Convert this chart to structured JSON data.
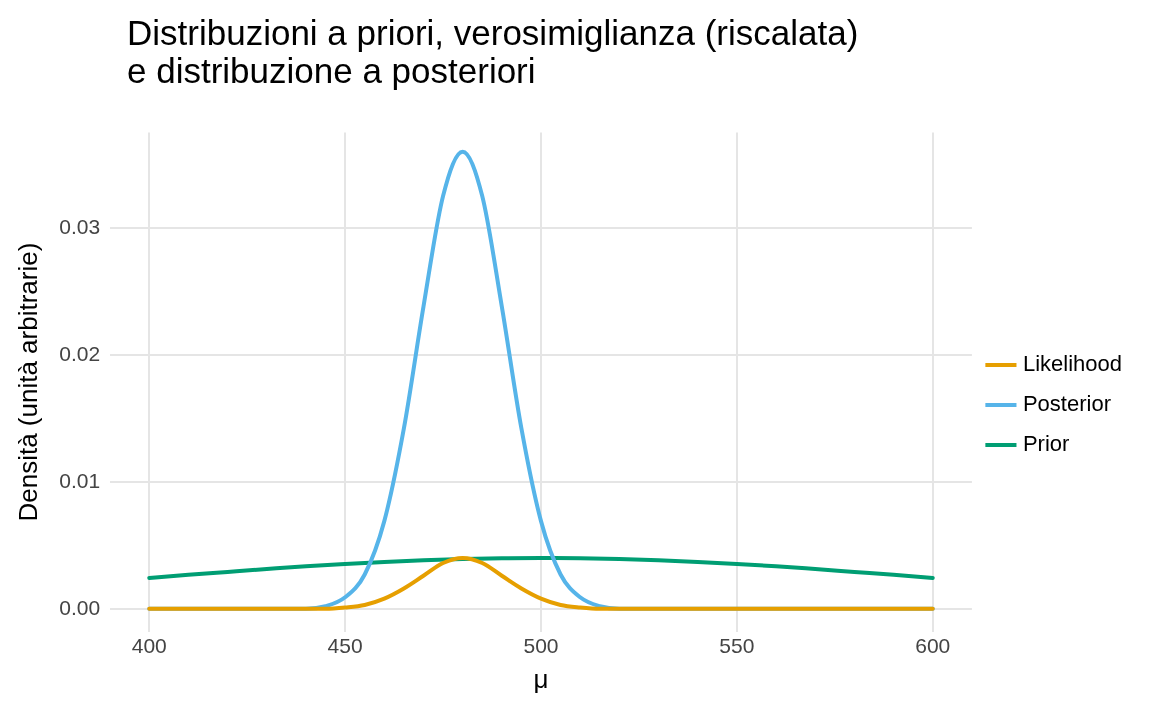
{
  "chart_data": {
    "type": "line",
    "title": "Distribuzioni a priori, verosimiglianza (riscalata)\ne distribuzione a posteriori",
    "xlabel": "μ",
    "ylabel": "Densità (unità arbitrarie)",
    "xlim": [
      390,
      610
    ],
    "xticks": [
      400,
      450,
      500,
      550,
      600
    ],
    "ylim": [
      -0.0018,
      0.0375
    ],
    "yticks": [
      {
        "value": 0,
        "label": "0.00"
      },
      {
        "value": 0.01,
        "label": "0.01"
      },
      {
        "value": 0.02,
        "label": "0.02"
      },
      {
        "value": 0.03,
        "label": "0.03"
      }
    ],
    "grid": true,
    "legend": "right",
    "marker": "none",
    "line_style": "solid",
    "series": [
      {
        "name": "Likelihood",
        "color": "#e69f00",
        "x": [
          400,
          440,
          445,
          450,
          455,
          460,
          465,
          470,
          475,
          480,
          485,
          490,
          495,
          500,
          505,
          510,
          515,
          520,
          600
        ],
        "values": [
          0,
          0,
          0,
          0.0001,
          0.0003,
          0.0008,
          0.0016,
          0.0026,
          0.0036,
          0.004,
          0.0036,
          0.0026,
          0.0016,
          0.0008,
          0.0003,
          0.0001,
          0,
          0,
          0
        ]
      },
      {
        "name": "Posterior",
        "color": "#56b4e9",
        "x": [
          400,
          440,
          445,
          450,
          455,
          460,
          465,
          470,
          475,
          480,
          485,
          490,
          495,
          500,
          505,
          510,
          515,
          520,
          600
        ],
        "values": [
          0,
          0,
          0.0002,
          0.0009,
          0.0027,
          0.0069,
          0.0142,
          0.0238,
          0.0325,
          0.036,
          0.0325,
          0.0238,
          0.0142,
          0.0069,
          0.0027,
          0.0009,
          0.0002,
          0,
          0
        ]
      },
      {
        "name": "Prior",
        "color": "#009e73",
        "x": [
          400,
          410,
          420,
          430,
          440,
          450,
          460,
          470,
          480,
          490,
          500,
          510,
          520,
          530,
          540,
          550,
          560,
          570,
          580,
          590,
          600
        ],
        "values": [
          0.00243,
          0.00267,
          0.0029,
          0.00313,
          0.00335,
          0.00353,
          0.00369,
          0.00382,
          0.00392,
          0.00398,
          0.004,
          0.00398,
          0.00392,
          0.00382,
          0.00369,
          0.00353,
          0.00335,
          0.00313,
          0.0029,
          0.00267,
          0.00243
        ]
      }
    ]
  }
}
